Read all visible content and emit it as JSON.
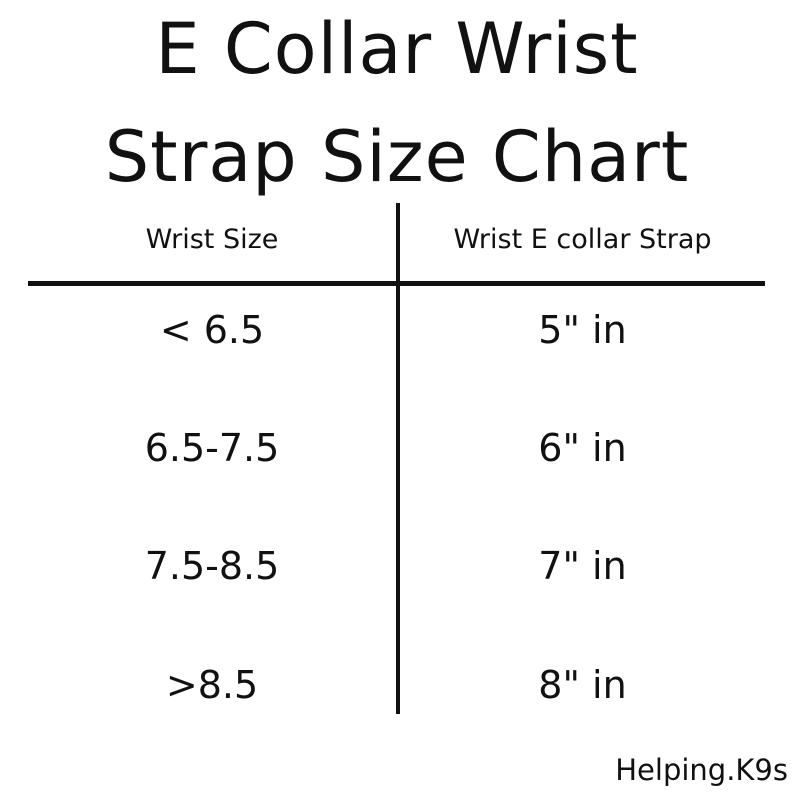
{
  "title": {
    "line1": "E Collar Wrist",
    "line2": "Strap Size Chart"
  },
  "table": {
    "headers": [
      "Wrist Size",
      "Wrist E collar Strap"
    ],
    "rows": [
      [
        "< 6.5",
        "5\" in"
      ],
      [
        "6.5-7.5",
        "6\" in"
      ],
      [
        "7.5-8.5",
        "7\" in"
      ],
      [
        ">8.5",
        "8\" in"
      ]
    ]
  },
  "footer": "Helping.K9s",
  "colors": {
    "text": "#111111",
    "background": "#ffffff"
  }
}
